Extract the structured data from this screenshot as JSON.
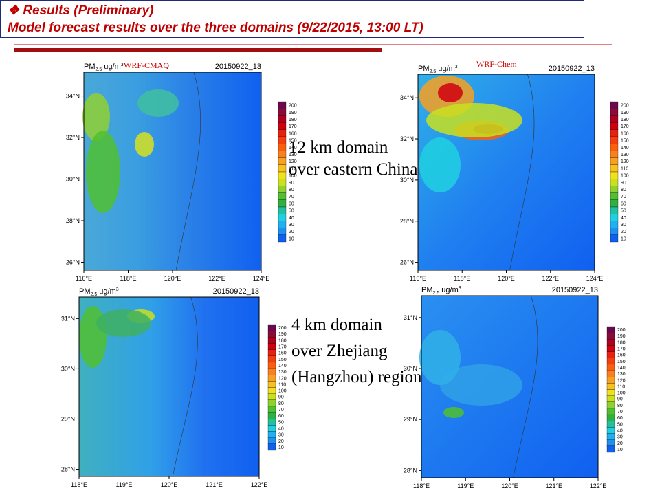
{
  "header": {
    "title": "Results (Preliminary)",
    "subtitle": "Model forecast results over the three domains (9/22/2015, 13:00 LT)"
  },
  "model_labels": [
    "WRF-CMAQ",
    "WRF-Chem"
  ],
  "pm_label": {
    "base": "PM",
    "sub": "2.5",
    "unit": "ug/m",
    "sup": "3"
  },
  "colorbar_labels": [
    "200",
    "190",
    "180",
    "170",
    "160",
    "150",
    "140",
    "130",
    "120",
    "110",
    "100",
    "90",
    "80",
    "70",
    "60",
    "50",
    "40",
    "30",
    "20",
    "10"
  ],
  "panels": [
    {
      "date": "20150922_13",
      "yticks": [
        "34°N",
        "32°N",
        "30°N",
        "28°N",
        "26°N"
      ],
      "xticks": [
        "116°E",
        "118°E",
        "120°E",
        "122°E",
        "124°E"
      ]
    },
    {
      "date": "20150922_13",
      "yticks": [
        "34°N",
        "32°N",
        "30°N",
        "28°N",
        "26°N"
      ],
      "xticks": [
        "116°E",
        "118°E",
        "120°E",
        "122°E",
        "124°E"
      ]
    },
    {
      "date": "20150922_13",
      "yticks": [
        "31°N",
        "30°N",
        "29°N",
        "28°N"
      ],
      "xticks": [
        "118°E",
        "119°E",
        "120°E",
        "121°E",
        "122°E"
      ]
    },
    {
      "date": "20150922_13",
      "yticks": [
        "31°N",
        "30°N",
        "29°N",
        "28°N"
      ],
      "xticks": [
        "118°E",
        "119°E",
        "120°E",
        "121°E",
        "122°E"
      ]
    }
  ],
  "annotations": [
    {
      "lines": [
        "12 km domain",
        "over eastern China"
      ]
    },
    {
      "lines": [
        "4 km domain",
        "over Zhejiang",
        "(Hangzhou) region"
      ]
    }
  ]
}
